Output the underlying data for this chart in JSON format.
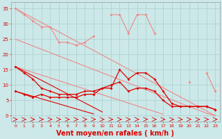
{
  "x": [
    0,
    1,
    2,
    3,
    4,
    5,
    6,
    7,
    8,
    9,
    10,
    11,
    12,
    13,
    14,
    15,
    16,
    17,
    18,
    19,
    20,
    21,
    22,
    23
  ],
  "line_light_wavy": [
    35,
    33,
    31,
    29,
    29,
    24,
    24,
    23,
    24,
    26,
    null,
    33,
    33,
    27,
    33,
    33,
    27,
    null,
    null,
    null,
    11,
    null,
    14,
    8
  ],
  "diag_upper1": [
    35.0,
    33.48,
    31.96,
    30.43,
    28.91,
    27.39,
    25.87,
    24.35,
    22.83,
    21.3,
    19.78,
    18.26,
    16.74,
    15.22,
    13.7,
    12.17,
    10.65,
    9.13,
    7.61,
    6.09,
    4.57,
    3.04,
    1.52,
    0.0
  ],
  "diag_upper2": [
    25.0,
    23.9,
    22.8,
    21.7,
    20.6,
    19.5,
    18.4,
    17.3,
    16.2,
    15.1,
    14.0,
    12.9,
    11.8,
    10.7,
    9.6,
    8.5,
    7.4,
    6.3,
    5.2,
    4.1,
    3.0,
    1.9,
    0.8,
    0.0
  ],
  "line_dark_wavy1": [
    16,
    14,
    12,
    9,
    8,
    7,
    7,
    7,
    8,
    8,
    9,
    9,
    15,
    12,
    14,
    14,
    12,
    8,
    4,
    3,
    3,
    3,
    3,
    2
  ],
  "line_dark_wavy2": [
    8,
    7,
    6,
    7,
    6,
    6,
    6,
    6,
    7,
    7,
    9,
    10,
    11,
    8,
    9,
    9,
    8,
    5,
    3,
    3,
    3,
    3,
    3,
    2
  ],
  "diag_lower_light": [
    16.0,
    15.09,
    14.17,
    13.26,
    12.35,
    11.43,
    10.52,
    9.61,
    8.7,
    7.78,
    6.87,
    5.96,
    5.04,
    4.13,
    3.22,
    2.3,
    1.39,
    0.48,
    0.0,
    0.0,
    0.0,
    0.0,
    0.0,
    0.0
  ],
  "diag_lower_dark1": [
    16.0,
    14.52,
    13.04,
    11.57,
    10.09,
    8.61,
    7.13,
    5.65,
    4.17,
    2.7,
    1.22,
    0.0,
    0.0,
    0.0,
    0.0,
    0.0,
    0.0,
    0.0,
    0.0,
    0.0,
    0.0,
    0.0,
    0.0,
    0.0
  ],
  "diag_lower_dark2": [
    8.0,
    7.17,
    6.35,
    5.52,
    4.7,
    3.87,
    3.04,
    2.22,
    1.39,
    0.57,
    0.0,
    0.0,
    0.0,
    0.0,
    0.0,
    0.0,
    0.0,
    0.0,
    0.0,
    0.0,
    0.0,
    0.0,
    0.0,
    0.0
  ],
  "bg_color": "#cce8e8",
  "grid_color": "#aacfcf",
  "light_red": "#f08888",
  "dark_red": "#dd0000",
  "xlabel": "Vent moyen/en rafales ( km/h )",
  "xlabel_fontsize": 7,
  "yticks": [
    0,
    5,
    10,
    15,
    20,
    25,
    30,
    35
  ],
  "ylim": [
    -2,
    37
  ],
  "xlim": [
    -0.5,
    23.5
  ]
}
